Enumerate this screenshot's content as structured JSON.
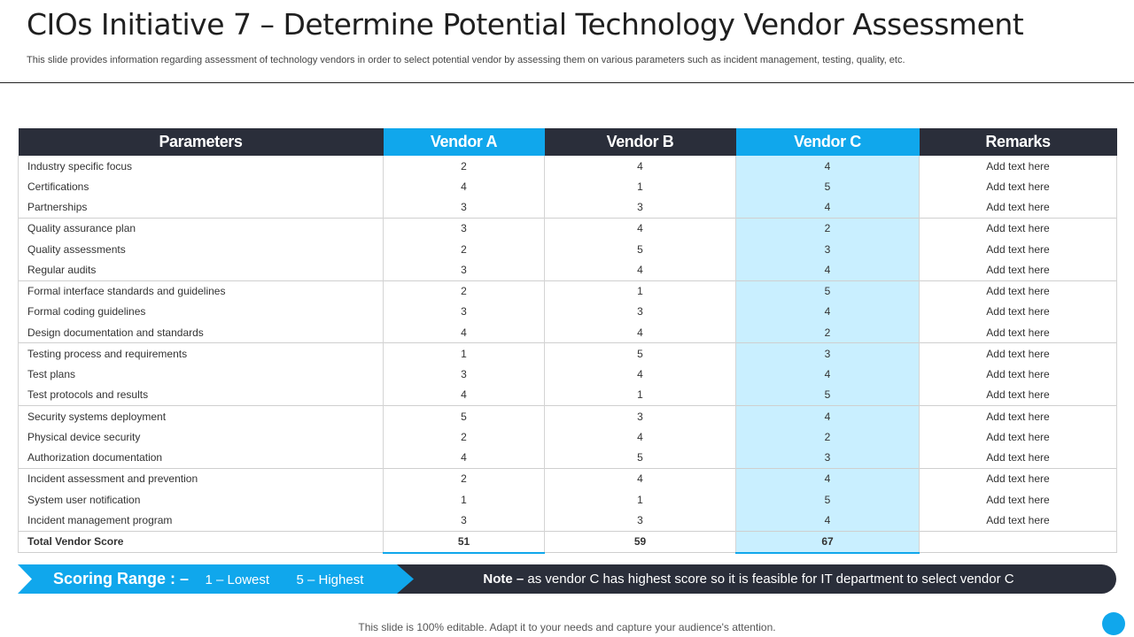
{
  "slide": {
    "title": "CIOs Initiative 7 – Determine Potential Technology Vendor Assessment",
    "subtitle": "This slide provides information regarding assessment of technology vendors in order to  select potential vendor by assessing them on  various parameters such as incident management, testing, quality, etc.",
    "footer": "This slide is 100% editable. Adapt it to your needs and capture your audience's attention."
  },
  "table": {
    "headers": [
      "Parameters",
      "Vendor A",
      "Vendor B",
      "Vendor C",
      "Remarks"
    ],
    "rows": [
      {
        "parameter": "Industry specific focus",
        "a": "2",
        "b": "4",
        "c": "4",
        "remark": "Add text here"
      },
      {
        "parameter": "Certifications",
        "a": "4",
        "b": "1",
        "c": "5",
        "remark": "Add text here"
      },
      {
        "parameter": "Partnerships",
        "a": "3",
        "b": "3",
        "c": "4",
        "remark": "Add text here"
      },
      {
        "parameter": "Quality assurance plan",
        "a": "3",
        "b": "4",
        "c": "2",
        "remark": "Add text here"
      },
      {
        "parameter": "Quality assessments",
        "a": "2",
        "b": "5",
        "c": "3",
        "remark": "Add text here"
      },
      {
        "parameter": "Regular audits",
        "a": "3",
        "b": "4",
        "c": "4",
        "remark": "Add text here"
      },
      {
        "parameter": "Formal interface standards and guidelines",
        "a": "2",
        "b": "1",
        "c": "5",
        "remark": "Add text here"
      },
      {
        "parameter": "Formal coding guidelines",
        "a": "3",
        "b": "3",
        "c": "4",
        "remark": "Add text here"
      },
      {
        "parameter": "Design documentation and standards",
        "a": "4",
        "b": "4",
        "c": "2",
        "remark": "Add text here"
      },
      {
        "parameter": "Testing process and requirements",
        "a": "1",
        "b": "5",
        "c": "3",
        "remark": "Add text here"
      },
      {
        "parameter": "Test plans",
        "a": "3",
        "b": "4",
        "c": "4",
        "remark": "Add text here"
      },
      {
        "parameter": "Test protocols and results",
        "a": "4",
        "b": "1",
        "c": "5",
        "remark": "Add text here"
      },
      {
        "parameter": "Security systems deployment",
        "a": "5",
        "b": "3",
        "c": "4",
        "remark": "Add text here"
      },
      {
        "parameter": "Physical device security",
        "a": "2",
        "b": "4",
        "c": "2",
        "remark": "Add text here"
      },
      {
        "parameter": "Authorization documentation",
        "a": "4",
        "b": "5",
        "c": "3",
        "remark": "Add text here"
      },
      {
        "parameter": "Incident assessment and prevention",
        "a": "2",
        "b": "4",
        "c": "4",
        "remark": "Add text here"
      },
      {
        "parameter": "System user notification",
        "a": "1",
        "b": "1",
        "c": "5",
        "remark": "Add text here"
      },
      {
        "parameter": "Incident management program",
        "a": "3",
        "b": "3",
        "c": "4",
        "remark": "Add text here"
      }
    ],
    "total": {
      "label": "Total Vendor Score",
      "a": "51",
      "b": "59",
      "c": "67"
    }
  },
  "scoring": {
    "label": "Scoring Range : –",
    "lowest": "1 – Lowest",
    "highest": "5 – Highest"
  },
  "note": {
    "label": "Note –",
    "text": " as vendor C has highest score so it is feasible for IT department to select vendor C"
  },
  "colors": {
    "accent": "#10a7ec",
    "dark": "#2a2e3a",
    "highlight": "#c9efff"
  }
}
